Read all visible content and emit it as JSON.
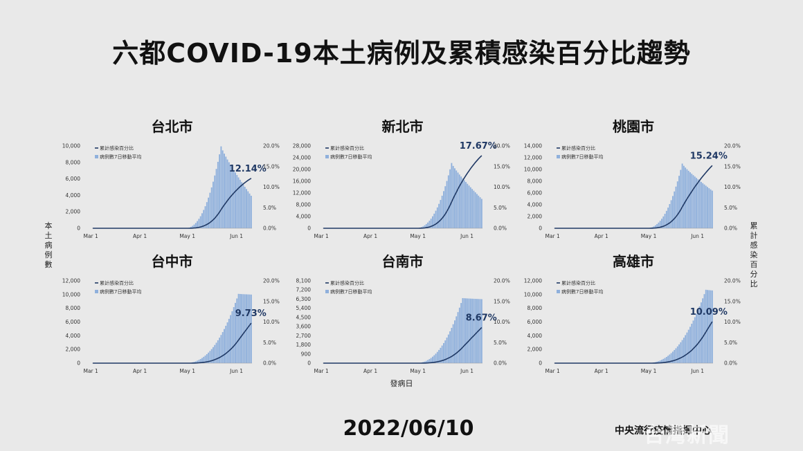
{
  "title": "六都COVID-19本土病例及累積感染百分比趨勢",
  "y_left_label": "本土病例數",
  "y_right_label": "累計感染百分比",
  "x_label": "發病日",
  "date": "2022/06/10",
  "source": "中央流行疫情指揮中心",
  "watermark": "台灣新聞",
  "colors": {
    "bar": "#8fb0dc",
    "line": "#1f3864",
    "annotation": "#1f3864"
  },
  "chart_data": [
    {
      "type": "bar",
      "title": "台北市",
      "legend": [
        "累計感染百分比",
        "病例數7日移動平均"
      ],
      "x_ticks": [
        "Mar 1",
        "Apr 1",
        "May 1",
        "Jun 1"
      ],
      "ylim": [
        0,
        10000
      ],
      "y_ticks": [
        "0",
        "2,000",
        "4,000",
        "6,000",
        "8,000",
        "10,000"
      ],
      "y2_ticks": [
        "0.0%",
        "5.0%",
        "10.0%",
        "15.0%",
        "20.0%"
      ],
      "peak": 9950,
      "peak_date": "May 21",
      "last_value": 3950,
      "final_percent": 12.14,
      "final_label": "12.14%"
    },
    {
      "type": "bar",
      "title": "新北市",
      "legend": [
        "累計感染百分比",
        "病例數7日移動平均"
      ],
      "x_ticks": [
        "Mar 1",
        "Apr 1",
        "May 1",
        "Jun 1"
      ],
      "ylim": [
        0,
        28000
      ],
      "y_ticks": [
        "0",
        "4,000",
        "8,000",
        "12,000",
        "16,000",
        "20,000",
        "24,000",
        "28,000"
      ],
      "y2_ticks": [
        "0.0%",
        "5.0%",
        "10.0%",
        "15.0%",
        "20.0%"
      ],
      "peak": 22200,
      "peak_date": "May 21",
      "last_value": 10000,
      "final_percent": 17.67,
      "final_label": "17.67%"
    },
    {
      "type": "bar",
      "title": "桃園市",
      "legend": [
        "累計感染百分比",
        "病例數7日移動平均"
      ],
      "x_ticks": [
        "Mar 1",
        "Apr 1",
        "May 1",
        "Jun 1"
      ],
      "ylim": [
        0,
        14000
      ],
      "y_ticks": [
        "0",
        "2,000",
        "4,000",
        "6,000",
        "8,000",
        "10,000",
        "12,000",
        "14,000"
      ],
      "y2_ticks": [
        "0.0%",
        "5.0%",
        "10.0%",
        "15.0%",
        "20.0%"
      ],
      "peak": 11000,
      "peak_date": "May 21",
      "last_value": 6400,
      "final_percent": 15.24,
      "final_label": "15.24%"
    },
    {
      "type": "bar",
      "title": "台中市",
      "legend": [
        "累計感染百分比",
        "病例數7日移動平均"
      ],
      "x_ticks": [
        "Mar 1",
        "Apr 1",
        "May 1",
        "Jun 1"
      ],
      "ylim": [
        0,
        12000
      ],
      "y_ticks": [
        "0",
        "2,000",
        "4,000",
        "6,000",
        "8,000",
        "10,000",
        "12,000"
      ],
      "y2_ticks": [
        "0.0%",
        "5.0%",
        "10.0%",
        "15.0%",
        "20.0%"
      ],
      "peak": 10100,
      "peak_date": "Jun 1",
      "last_value": 10000,
      "final_percent": 9.73,
      "final_label": "9.73%"
    },
    {
      "type": "bar",
      "title": "台南市",
      "legend": [
        "累計感染百分比",
        "病例數7日移動平均"
      ],
      "x_ticks": [
        "Mar 1",
        "Apr 1",
        "May 1",
        "Jun 1"
      ],
      "ylim": [
        0,
        8100
      ],
      "y_ticks": [
        "0",
        "900",
        "1,800",
        "2,700",
        "3,600",
        "4,500",
        "5,400",
        "6,300",
        "7,200",
        "8,100"
      ],
      "y2_ticks": [
        "0.0%",
        "5.0%",
        "10.0%",
        "15.0%",
        "20.0%"
      ],
      "peak": 6400,
      "peak_date": "May 28",
      "last_value": 6300,
      "final_percent": 8.67,
      "final_label": "8.67%"
    },
    {
      "type": "bar",
      "title": "高雄市",
      "legend": [
        "累計感染百分比",
        "病例數7日移動平均"
      ],
      "x_ticks": [
        "Mar 1",
        "Apr 1",
        "May 1",
        "Jun 1"
      ],
      "ylim": [
        0,
        12000
      ],
      "y_ticks": [
        "0",
        "2,000",
        "4,000",
        "6,000",
        "8,000",
        "10,000",
        "12,000"
      ],
      "y2_ticks": [
        "0.0%",
        "5.0%",
        "10.0%",
        "15.0%",
        "20.0%"
      ],
      "peak": 10700,
      "peak_date": "Jun 5",
      "last_value": 10600,
      "final_percent": 10.09,
      "final_label": "10.09%"
    }
  ]
}
